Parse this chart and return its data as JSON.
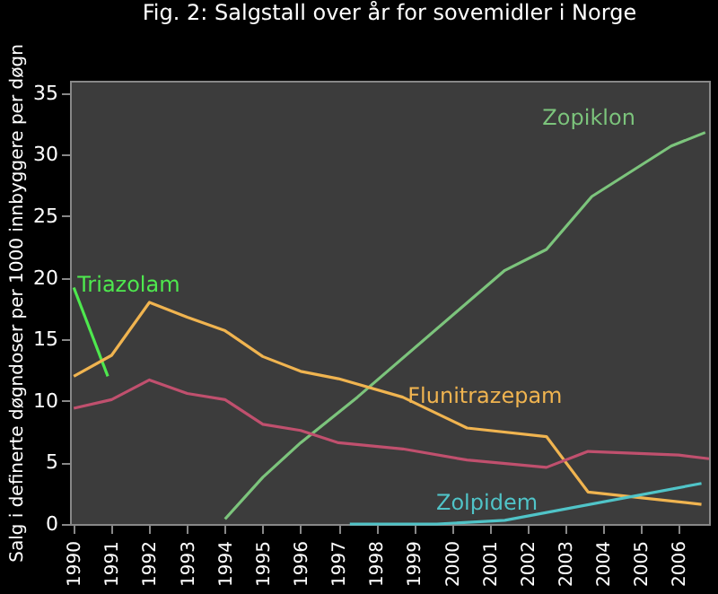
{
  "chart_data": {
    "type": "line",
    "title": "Fig. 2: Salgstall over år for sovemidler i Norge",
    "ylabel": "Salg i definerte døgndoser per 1000 innbyggere per døgn",
    "xlim": [
      1989.9,
      2006.8
    ],
    "xticks": [
      1990,
      1991,
      1992,
      1993,
      1994,
      1995,
      1996,
      1997,
      1998,
      1999,
      2000,
      2001,
      2002,
      2003,
      2004,
      2005,
      2006
    ],
    "ylim": [
      0,
      36
    ],
    "yticks": [
      0,
      5,
      10,
      15,
      20,
      25,
      30,
      35
    ],
    "grid": false,
    "marker": "none",
    "line_style": "solid",
    "series": [
      {
        "name": "Zopiklon",
        "color": "#7cc47c",
        "x": [
          1994,
          1995,
          1996,
          1997.5,
          2001.4,
          2002.5,
          2003.7,
          2005.8,
          2006.7
        ],
        "values": [
          0.4,
          3.8,
          6.6,
          10.3,
          20.6,
          22.3,
          26.6,
          30.7,
          31.8
        ]
      },
      {
        "name": "Triazolam",
        "color": "#4ee84e",
        "x": [
          1990,
          1990.9
        ],
        "values": [
          19.2,
          12.0
        ]
      },
      {
        "name": "Flunitrazepam",
        "color": "#f0b450",
        "x": [
          1990,
          1991,
          1992,
          1993,
          1994,
          1995,
          1996,
          1997,
          1998.7,
          2000.4,
          2002.5,
          2003.6,
          2006.6
        ],
        "values": [
          12.0,
          13.7,
          18.0,
          16.8,
          15.7,
          13.6,
          12.4,
          11.8,
          10.3,
          7.8,
          7.1,
          2.6,
          1.6
        ]
      },
      {
        "color": "#c0506e",
        "x": [
          1990,
          1991,
          1992,
          1993,
          1994,
          1995,
          1996,
          1997,
          1998.7,
          2000.4,
          2002.5,
          2003.6,
          2006,
          2006.8
        ],
        "values": [
          9.4,
          10.1,
          11.7,
          10.6,
          10.1,
          8.1,
          7.6,
          6.6,
          6.1,
          5.2,
          4.6,
          5.9,
          5.6,
          5.3
        ]
      },
      {
        "name": "Zolpidem",
        "color": "#50c4c8",
        "x": [
          1997.3,
          1999.6,
          2001.4,
          2006.6
        ],
        "values": [
          0,
          0,
          0.3,
          3.3
        ]
      }
    ]
  }
}
